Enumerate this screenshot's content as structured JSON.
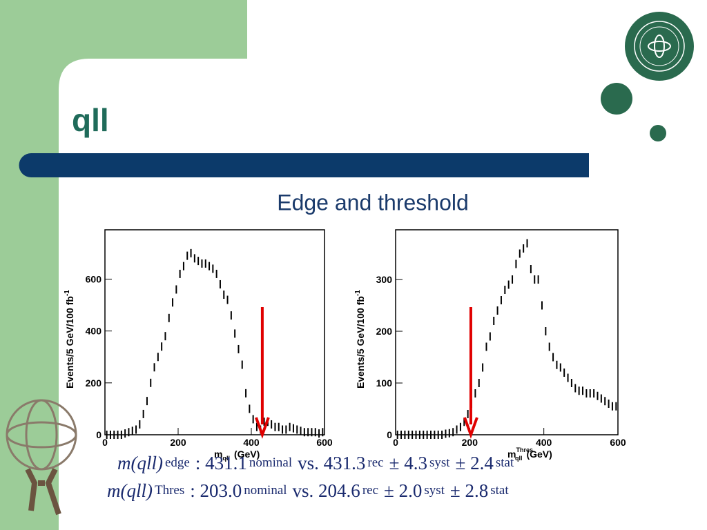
{
  "slide": {
    "title": "qll",
    "subtitle": "Edge and threshold"
  },
  "chart_data": [
    {
      "type": "histogram",
      "y_label": "Events/5 GeV/100 fb",
      "y_label_sup": "-1",
      "x_label": {
        "symbol": "m",
        "subscript": "qll",
        "unit": "(GeV)"
      },
      "x": [
        0,
        10,
        20,
        30,
        40,
        50,
        60,
        70,
        80,
        90,
        100,
        110,
        120,
        130,
        140,
        150,
        160,
        170,
        180,
        190,
        200,
        210,
        220,
        230,
        240,
        250,
        260,
        270,
        280,
        290,
        300,
        310,
        320,
        330,
        340,
        350,
        360,
        370,
        380,
        390,
        400,
        410,
        420,
        430,
        440,
        450,
        460,
        470,
        480,
        490,
        500,
        510,
        520,
        530,
        540,
        550,
        560,
        570,
        580,
        590
      ],
      "values": [
        0,
        0,
        0,
        0,
        0,
        5,
        10,
        15,
        20,
        40,
        80,
        130,
        200,
        260,
        300,
        340,
        380,
        450,
        510,
        560,
        620,
        650,
        690,
        700,
        680,
        670,
        660,
        660,
        650,
        640,
        620,
        580,
        540,
        520,
        460,
        390,
        330,
        270,
        160,
        100,
        60,
        30,
        20,
        50,
        50,
        40,
        30,
        30,
        20,
        20,
        30,
        25,
        20,
        15,
        10,
        10,
        10,
        10,
        5,
        10
      ],
      "color": "#000000",
      "xlim": [
        0,
        600
      ],
      "ylim": [
        0,
        790
      ],
      "xticks": [
        0,
        200,
        400,
        600
      ],
      "yticks": [
        0,
        200,
        400,
        600
      ],
      "arrow": {
        "x": 430,
        "color": "#e00000"
      }
    },
    {
      "type": "histogram",
      "y_label": "Events/5 GeV/100 fb",
      "y_label_sup": "-1",
      "x_label": {
        "symbol": "m",
        "subscript": "qll",
        "superscript": "Thres",
        "unit": "(GeV)"
      },
      "x": [
        0,
        10,
        20,
        30,
        40,
        50,
        60,
        70,
        80,
        90,
        100,
        110,
        120,
        130,
        140,
        150,
        160,
        170,
        180,
        190,
        200,
        210,
        220,
        230,
        240,
        250,
        260,
        270,
        280,
        290,
        300,
        310,
        320,
        330,
        340,
        350,
        360,
        370,
        380,
        390,
        400,
        410,
        420,
        430,
        440,
        450,
        460,
        470,
        480,
        490,
        500,
        510,
        520,
        530,
        540,
        550,
        560,
        570,
        580,
        590
      ],
      "values": [
        0,
        0,
        0,
        0,
        0,
        0,
        0,
        0,
        0,
        0,
        0,
        0,
        0,
        2,
        3,
        5,
        10,
        15,
        25,
        40,
        60,
        80,
        100,
        130,
        170,
        190,
        220,
        240,
        260,
        280,
        290,
        300,
        330,
        350,
        360,
        370,
        320,
        300,
        300,
        250,
        200,
        170,
        150,
        135,
        130,
        120,
        110,
        100,
        90,
        85,
        85,
        80,
        80,
        80,
        75,
        70,
        65,
        60,
        55,
        55
      ],
      "color": "#000000",
      "xlim": [
        0,
        600
      ],
      "ylim": [
        0,
        396
      ],
      "xticks": [
        0,
        200,
        400,
        600
      ],
      "yticks": [
        0,
        100,
        200,
        300
      ],
      "arrow": {
        "x": 203,
        "color": "#e00000"
      }
    }
  ],
  "equations": [
    [
      "m(qll)",
      "edge",
      ": 431.1",
      "nominal",
      "vs. 431.3",
      "rec",
      "± 4.3",
      "syst",
      "± 2.4",
      "stat"
    ],
    [
      "m(qll)",
      "Thres",
      ": 203.0",
      "nominal",
      "vs. 204.6",
      "rec",
      "± 2.0",
      "syst",
      "± 2.8",
      "stat"
    ]
  ]
}
